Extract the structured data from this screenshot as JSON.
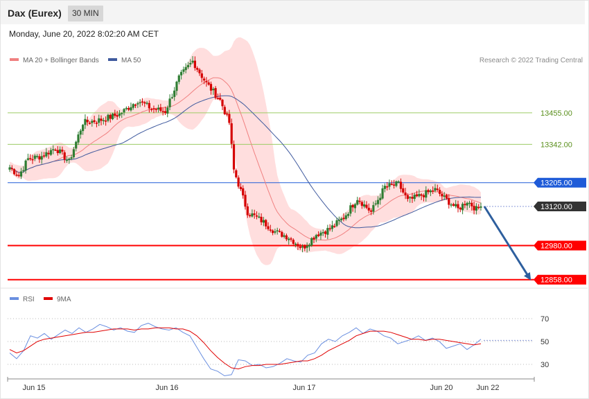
{
  "header": {
    "instrument": "Dax (Eurex)",
    "interval": "30 MIN"
  },
  "timestamp": "Monday, June 20, 2022 8:02:20 AM CET",
  "legend": {
    "ma20": "MA 20 + Bollinger Bands",
    "ma50": "MA 50",
    "rsi": "RSI",
    "rsi_ma": "9MA",
    "credit": "Research © 2022 Trading Central"
  },
  "colors": {
    "bull": "#2e7d32",
    "bear": "#d50000",
    "band": "#ffdede",
    "ma20": "#f08080",
    "ma50": "#3f5a9e",
    "resistance_green": "#9ccc65",
    "pivot_blue": "#1e5bd8",
    "support_red": "#ff0000",
    "last_price": "#333333",
    "rsi": "#6a8fe0",
    "rsi_ma": "#e00000"
  },
  "chart_data": [
    {
      "type": "candlestick",
      "title": "Dax (Eurex)",
      "interval": "30 MIN",
      "ylim": [
        12830,
        13700
      ],
      "x_ticks": [
        "Jun 15",
        "Jun 16",
        "Jun 17",
        "Jun 20",
        "Jun 22"
      ],
      "levels": [
        {
          "label": "13455.00",
          "value": 13455,
          "kind": "resistance"
        },
        {
          "label": "13342.00",
          "value": 13342,
          "kind": "resistance"
        },
        {
          "label": "13205.00",
          "value": 13205,
          "kind": "pivot"
        },
        {
          "label": "13120.00",
          "value": 13120,
          "kind": "last"
        },
        {
          "label": "12980.00",
          "value": 12980,
          "kind": "support"
        },
        {
          "label": "12858.00",
          "value": 12858,
          "kind": "support"
        }
      ],
      "projection": {
        "from": 13120,
        "to": 12858
      },
      "close_anchors": [
        [
          0,
          13260
        ],
        [
          4,
          13230
        ],
        [
          8,
          13290
        ],
        [
          14,
          13300
        ],
        [
          20,
          13330
        ],
        [
          26,
          13280
        ],
        [
          32,
          13420
        ],
        [
          40,
          13430
        ],
        [
          48,
          13450
        ],
        [
          56,
          13500
        ],
        [
          62,
          13470
        ],
        [
          68,
          13460
        ],
        [
          74,
          13580
        ],
        [
          80,
          13640
        ],
        [
          86,
          13560
        ],
        [
          92,
          13500
        ],
        [
          96,
          13420
        ],
        [
          98,
          13250
        ],
        [
          100,
          13200
        ],
        [
          104,
          13100
        ],
        [
          110,
          13070
        ],
        [
          116,
          13030
        ],
        [
          122,
          13010
        ],
        [
          128,
          12970
        ],
        [
          134,
          13020
        ],
        [
          140,
          13040
        ],
        [
          146,
          13080
        ],
        [
          152,
          13150
        ],
        [
          158,
          13100
        ],
        [
          164,
          13190
        ],
        [
          170,
          13200
        ],
        [
          174,
          13140
        ],
        [
          180,
          13160
        ],
        [
          186,
          13180
        ],
        [
          190,
          13150
        ],
        [
          196,
          13110
        ],
        [
          200,
          13140
        ],
        [
          204,
          13110
        ],
        [
          206,
          13120
        ]
      ]
    },
    {
      "type": "line",
      "title": "RSI",
      "ylim": [
        15,
        85
      ],
      "y_ticks": [
        "70",
        "50",
        "30"
      ],
      "series": [
        {
          "name": "RSI",
          "values": [
            40,
            35,
            42,
            55,
            53,
            57,
            52,
            56,
            60,
            57,
            62,
            58,
            61,
            65,
            63,
            60,
            62,
            59,
            58,
            64,
            66,
            63,
            61,
            60,
            62,
            58,
            55,
            45,
            35,
            26,
            24,
            20,
            21,
            34,
            33,
            29,
            30,
            27,
            28,
            31,
            35,
            33,
            32,
            38,
            40,
            48,
            52,
            50,
            55,
            58,
            62,
            57,
            61,
            59,
            55,
            53,
            48,
            50,
            52,
            55,
            51,
            53,
            50,
            44,
            46,
            48,
            43,
            47,
            52
          ]
        },
        {
          "name": "9MA",
          "values": [
            43,
            40,
            42,
            46,
            50,
            52,
            53,
            54,
            55,
            56,
            57,
            58,
            58,
            59,
            60,
            61,
            61,
            61,
            60,
            61,
            61,
            62,
            62,
            62,
            61,
            61,
            59,
            55,
            49,
            42,
            36,
            31,
            27,
            26,
            28,
            29,
            29,
            30,
            30,
            30,
            31,
            32,
            33,
            33,
            35,
            38,
            42,
            45,
            48,
            51,
            55,
            57,
            59,
            59,
            59,
            58,
            56,
            54,
            52,
            52,
            51,
            52,
            52,
            51,
            50,
            49,
            48,
            47,
            48
          ]
        }
      ]
    }
  ]
}
